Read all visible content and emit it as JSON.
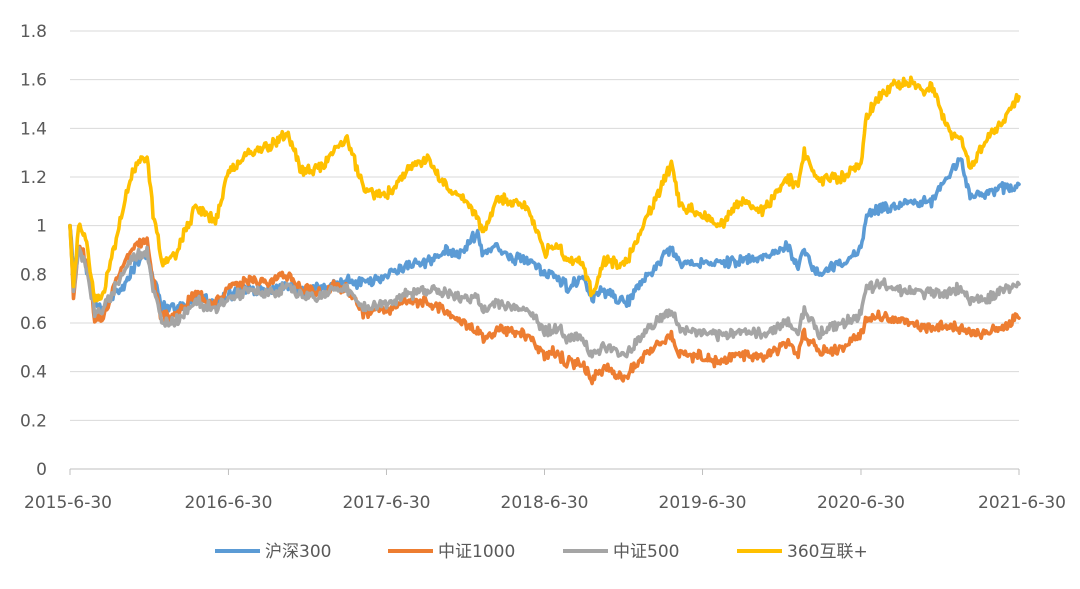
{
  "chart_data": {
    "type": "line",
    "title": "",
    "xlabel": "",
    "ylabel": "",
    "ylim": [
      0,
      1.8
    ],
    "y_ticks": [
      "0",
      "0.2",
      "0.4",
      "0.6",
      "0.8",
      "1",
      "1.2",
      "1.4",
      "1.6",
      "1.8"
    ],
    "x_ticks": [
      "2015-6-30",
      "2016-6-30",
      "2017-6-30",
      "2018-6-30",
      "2019-6-30",
      "2020-6-30",
      "2021-6-30"
    ],
    "xlim": [
      "2015-6-30",
      "2021-6-30"
    ],
    "grid": "horizontal",
    "legend_position": "bottom",
    "series": [
      {
        "name": "沪深300",
        "color": "#5B9BD5",
        "points": [
          [
            "2015-06-30",
            1.0
          ],
          [
            "2015-07-08",
            0.82
          ],
          [
            "2015-07-20",
            0.9
          ],
          [
            "2015-08-05",
            0.85
          ],
          [
            "2015-08-26",
            0.68
          ],
          [
            "2015-09-15",
            0.66
          ],
          [
            "2015-10-15",
            0.73
          ],
          [
            "2015-11-10",
            0.78
          ],
          [
            "2015-11-30",
            0.85
          ],
          [
            "2015-12-25",
            0.88
          ],
          [
            "2016-01-08",
            0.79
          ],
          [
            "2016-01-28",
            0.67
          ],
          [
            "2016-02-29",
            0.66
          ],
          [
            "2016-04-15",
            0.7
          ],
          [
            "2016-05-31",
            0.68
          ],
          [
            "2016-06-30",
            0.71
          ],
          [
            "2016-08-15",
            0.74
          ],
          [
            "2016-09-30",
            0.73
          ],
          [
            "2016-11-15",
            0.76
          ],
          [
            "2016-12-15",
            0.73
          ],
          [
            "2017-01-31",
            0.74
          ],
          [
            "2017-02-28",
            0.76
          ],
          [
            "2017-03-31",
            0.77
          ],
          [
            "2017-05-10",
            0.76
          ],
          [
            "2017-06-30",
            0.8
          ],
          [
            "2017-08-10",
            0.83
          ],
          [
            "2017-09-30",
            0.85
          ],
          [
            "2017-11-20",
            0.9
          ],
          [
            "2017-12-15",
            0.88
          ],
          [
            "2018-01-24",
            0.97
          ],
          [
            "2018-02-09",
            0.88
          ],
          [
            "2018-03-12",
            0.92
          ],
          [
            "2018-04-15",
            0.86
          ],
          [
            "2018-05-20",
            0.87
          ],
          [
            "2018-06-30",
            0.8
          ],
          [
            "2018-07-30",
            0.79
          ],
          [
            "2018-08-20",
            0.75
          ],
          [
            "2018-09-26",
            0.78
          ],
          [
            "2018-10-18",
            0.7
          ],
          [
            "2018-11-15",
            0.73
          ],
          [
            "2019-01-03",
            0.68
          ],
          [
            "2019-02-25",
            0.8
          ],
          [
            "2019-04-19",
            0.91
          ],
          [
            "2019-05-10",
            0.84
          ],
          [
            "2019-06-30",
            0.85
          ],
          [
            "2019-08-10",
            0.84
          ],
          [
            "2019-09-20",
            0.86
          ],
          [
            "2019-11-15",
            0.86
          ],
          [
            "2020-01-14",
            0.92
          ],
          [
            "2020-02-03",
            0.83
          ],
          [
            "2020-02-20",
            0.9
          ],
          [
            "2020-03-23",
            0.8
          ],
          [
            "2020-05-20",
            0.85
          ],
          [
            "2020-06-30",
            0.9
          ],
          [
            "2020-07-13",
            1.05
          ],
          [
            "2020-08-20",
            1.07
          ],
          [
            "2020-10-15",
            1.09
          ],
          [
            "2020-12-10",
            1.1
          ],
          [
            "2021-01-15",
            1.2
          ],
          [
            "2021-02-18",
            1.27
          ],
          [
            "2021-03-09",
            1.12
          ],
          [
            "2021-04-15",
            1.14
          ],
          [
            "2021-05-20",
            1.15
          ],
          [
            "2021-06-30",
            1.17
          ]
        ]
      },
      {
        "name": "中证1000",
        "color": "#ED7D31",
        "points": [
          [
            "2015-06-30",
            1.0
          ],
          [
            "2015-07-08",
            0.72
          ],
          [
            "2015-07-20",
            0.92
          ],
          [
            "2015-08-05",
            0.87
          ],
          [
            "2015-08-26",
            0.62
          ],
          [
            "2015-09-15",
            0.63
          ],
          [
            "2015-10-15",
            0.78
          ],
          [
            "2015-11-10",
            0.88
          ],
          [
            "2015-11-30",
            0.92
          ],
          [
            "2015-12-25",
            0.94
          ],
          [
            "2016-01-08",
            0.78
          ],
          [
            "2016-01-28",
            0.62
          ],
          [
            "2016-02-29",
            0.63
          ],
          [
            "2016-04-15",
            0.72
          ],
          [
            "2016-05-31",
            0.69
          ],
          [
            "2016-06-30",
            0.74
          ],
          [
            "2016-08-15",
            0.78
          ],
          [
            "2016-09-30",
            0.77
          ],
          [
            "2016-11-15",
            0.8
          ],
          [
            "2016-12-15",
            0.74
          ],
          [
            "2017-01-31",
            0.72
          ],
          [
            "2017-02-28",
            0.75
          ],
          [
            "2017-03-31",
            0.74
          ],
          [
            "2017-05-10",
            0.64
          ],
          [
            "2017-06-30",
            0.65
          ],
          [
            "2017-08-10",
            0.68
          ],
          [
            "2017-09-30",
            0.69
          ],
          [
            "2017-11-20",
            0.64
          ],
          [
            "2017-12-15",
            0.61
          ],
          [
            "2018-01-24",
            0.58
          ],
          [
            "2018-02-09",
            0.53
          ],
          [
            "2018-03-12",
            0.58
          ],
          [
            "2018-04-15",
            0.56
          ],
          [
            "2018-05-20",
            0.55
          ],
          [
            "2018-06-30",
            0.47
          ],
          [
            "2018-07-30",
            0.48
          ],
          [
            "2018-08-20",
            0.44
          ],
          [
            "2018-09-26",
            0.43
          ],
          [
            "2018-10-18",
            0.37
          ],
          [
            "2018-11-15",
            0.41
          ],
          [
            "2019-01-03",
            0.38
          ],
          [
            "2019-02-25",
            0.49
          ],
          [
            "2019-04-19",
            0.55
          ],
          [
            "2019-05-10",
            0.47
          ],
          [
            "2019-06-30",
            0.46
          ],
          [
            "2019-08-10",
            0.44
          ],
          [
            "2019-09-20",
            0.47
          ],
          [
            "2019-11-15",
            0.46
          ],
          [
            "2020-01-14",
            0.52
          ],
          [
            "2020-02-03",
            0.46
          ],
          [
            "2020-02-20",
            0.56
          ],
          [
            "2020-03-23",
            0.48
          ],
          [
            "2020-05-20",
            0.5
          ],
          [
            "2020-06-30",
            0.55
          ],
          [
            "2020-07-13",
            0.62
          ],
          [
            "2020-08-20",
            0.63
          ],
          [
            "2020-10-15",
            0.6
          ],
          [
            "2020-12-10",
            0.58
          ],
          [
            "2021-01-15",
            0.59
          ],
          [
            "2021-02-18",
            0.57
          ],
          [
            "2021-03-09",
            0.56
          ],
          [
            "2021-04-15",
            0.56
          ],
          [
            "2021-05-20",
            0.58
          ],
          [
            "2021-06-30",
            0.62
          ]
        ]
      },
      {
        "name": "中证500",
        "color": "#A5A5A5",
        "points": [
          [
            "2015-06-30",
            1.0
          ],
          [
            "2015-07-08",
            0.74
          ],
          [
            "2015-07-20",
            0.9
          ],
          [
            "2015-08-05",
            0.85
          ],
          [
            "2015-08-26",
            0.64
          ],
          [
            "2015-09-15",
            0.65
          ],
          [
            "2015-10-15",
            0.76
          ],
          [
            "2015-11-10",
            0.84
          ],
          [
            "2015-11-30",
            0.88
          ],
          [
            "2015-12-25",
            0.9
          ],
          [
            "2016-01-08",
            0.74
          ],
          [
            "2016-01-28",
            0.6
          ],
          [
            "2016-02-29",
            0.61
          ],
          [
            "2016-04-15",
            0.69
          ],
          [
            "2016-05-31",
            0.66
          ],
          [
            "2016-06-30",
            0.7
          ],
          [
            "2016-08-15",
            0.73
          ],
          [
            "2016-09-30",
            0.72
          ],
          [
            "2016-11-15",
            0.75
          ],
          [
            "2016-12-15",
            0.71
          ],
          [
            "2017-01-31",
            0.71
          ],
          [
            "2017-02-28",
            0.74
          ],
          [
            "2017-03-31",
            0.74
          ],
          [
            "2017-05-10",
            0.66
          ],
          [
            "2017-06-30",
            0.68
          ],
          [
            "2017-08-10",
            0.71
          ],
          [
            "2017-09-30",
            0.74
          ],
          [
            "2017-11-20",
            0.72
          ],
          [
            "2017-12-15",
            0.7
          ],
          [
            "2018-01-24",
            0.71
          ],
          [
            "2018-02-09",
            0.64
          ],
          [
            "2018-03-12",
            0.69
          ],
          [
            "2018-04-15",
            0.66
          ],
          [
            "2018-05-20",
            0.66
          ],
          [
            "2018-06-30",
            0.57
          ],
          [
            "2018-07-30",
            0.58
          ],
          [
            "2018-08-20",
            0.54
          ],
          [
            "2018-09-26",
            0.54
          ],
          [
            "2018-10-18",
            0.47
          ],
          [
            "2018-11-15",
            0.5
          ],
          [
            "2019-01-03",
            0.47
          ],
          [
            "2019-02-25",
            0.58
          ],
          [
            "2019-04-19",
            0.65
          ],
          [
            "2019-05-10",
            0.57
          ],
          [
            "2019-06-30",
            0.56
          ],
          [
            "2019-08-10",
            0.54
          ],
          [
            "2019-09-20",
            0.57
          ],
          [
            "2019-11-15",
            0.55
          ],
          [
            "2020-01-14",
            0.61
          ],
          [
            "2020-02-03",
            0.55
          ],
          [
            "2020-02-20",
            0.66
          ],
          [
            "2020-03-23",
            0.56
          ],
          [
            "2020-05-20",
            0.6
          ],
          [
            "2020-06-30",
            0.64
          ],
          [
            "2020-07-13",
            0.74
          ],
          [
            "2020-08-20",
            0.76
          ],
          [
            "2020-10-15",
            0.73
          ],
          [
            "2020-12-10",
            0.72
          ],
          [
            "2021-01-15",
            0.73
          ],
          [
            "2021-02-18",
            0.74
          ],
          [
            "2021-03-09",
            0.7
          ],
          [
            "2021-04-15",
            0.7
          ],
          [
            "2021-05-20",
            0.73
          ],
          [
            "2021-06-30",
            0.76
          ]
        ]
      },
      {
        "name": "360互联+",
        "color": "#FFC000",
        "points": [
          [
            "2015-06-30",
            1.0
          ],
          [
            "2015-07-08",
            0.75
          ],
          [
            "2015-07-20",
            1.0
          ],
          [
            "2015-08-05",
            0.95
          ],
          [
            "2015-08-26",
            0.7
          ],
          [
            "2015-09-15",
            0.72
          ],
          [
            "2015-10-15",
            0.95
          ],
          [
            "2015-11-10",
            1.15
          ],
          [
            "2015-11-30",
            1.25
          ],
          [
            "2015-12-25",
            1.29
          ],
          [
            "2016-01-08",
            1.05
          ],
          [
            "2016-01-28",
            0.85
          ],
          [
            "2016-02-29",
            0.88
          ],
          [
            "2016-04-15",
            1.08
          ],
          [
            "2016-05-31",
            1.02
          ],
          [
            "2016-06-30",
            1.22
          ],
          [
            "2016-08-15",
            1.3
          ],
          [
            "2016-09-30",
            1.32
          ],
          [
            "2016-11-15",
            1.38
          ],
          [
            "2016-12-15",
            1.22
          ],
          [
            "2017-01-31",
            1.24
          ],
          [
            "2017-02-28",
            1.3
          ],
          [
            "2017-03-31",
            1.35
          ],
          [
            "2017-05-10",
            1.15
          ],
          [
            "2017-06-30",
            1.12
          ],
          [
            "2017-08-10",
            1.22
          ],
          [
            "2017-09-30",
            1.28
          ],
          [
            "2017-11-20",
            1.15
          ],
          [
            "2017-12-15",
            1.13
          ],
          [
            "2018-01-24",
            1.05
          ],
          [
            "2018-02-09",
            0.96
          ],
          [
            "2018-03-12",
            1.12
          ],
          [
            "2018-04-15",
            1.1
          ],
          [
            "2018-05-20",
            1.08
          ],
          [
            "2018-06-30",
            0.89
          ],
          [
            "2018-07-30",
            0.92
          ],
          [
            "2018-08-20",
            0.86
          ],
          [
            "2018-09-26",
            0.85
          ],
          [
            "2018-10-18",
            0.71
          ],
          [
            "2018-11-15",
            0.86
          ],
          [
            "2019-01-03",
            0.84
          ],
          [
            "2019-02-25",
            1.05
          ],
          [
            "2019-04-19",
            1.25
          ],
          [
            "2019-05-10",
            1.08
          ],
          [
            "2019-06-30",
            1.05
          ],
          [
            "2019-08-10",
            1.0
          ],
          [
            "2019-09-20",
            1.1
          ],
          [
            "2019-11-15",
            1.06
          ],
          [
            "2020-01-14",
            1.2
          ],
          [
            "2020-02-03",
            1.15
          ],
          [
            "2020-02-20",
            1.3
          ],
          [
            "2020-03-23",
            1.18
          ],
          [
            "2020-05-20",
            1.2
          ],
          [
            "2020-06-30",
            1.25
          ],
          [
            "2020-07-13",
            1.45
          ],
          [
            "2020-08-20",
            1.55
          ],
          [
            "2020-10-15",
            1.6
          ],
          [
            "2020-11-20",
            1.55
          ],
          [
            "2020-12-10",
            1.58
          ],
          [
            "2021-01-15",
            1.4
          ],
          [
            "2021-02-18",
            1.35
          ],
          [
            "2021-03-09",
            1.23
          ],
          [
            "2021-04-15",
            1.35
          ],
          [
            "2021-05-20",
            1.42
          ],
          [
            "2021-06-30",
            1.53
          ]
        ]
      }
    ]
  }
}
